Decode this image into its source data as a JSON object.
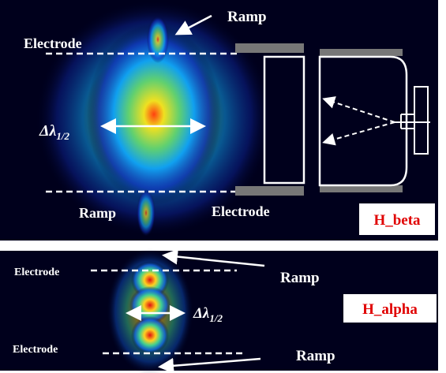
{
  "top_panel": {
    "ramp_top": "Ramp",
    "electrode_top": "Electrode",
    "width_symbol": "Δλ",
    "width_subscript": "1/2",
    "ramp_bottom": "Ramp",
    "electrode_bottom": "Electrode",
    "line_label": "H_beta"
  },
  "bottom_panel": {
    "electrode_top": "Electrode",
    "ramp_top": "Ramp",
    "width_symbol": "Δλ",
    "width_subscript": "1/2",
    "line_label": "H_alpha",
    "electrode_bottom": "Electrode",
    "ramp_bottom": "Ramp"
  }
}
